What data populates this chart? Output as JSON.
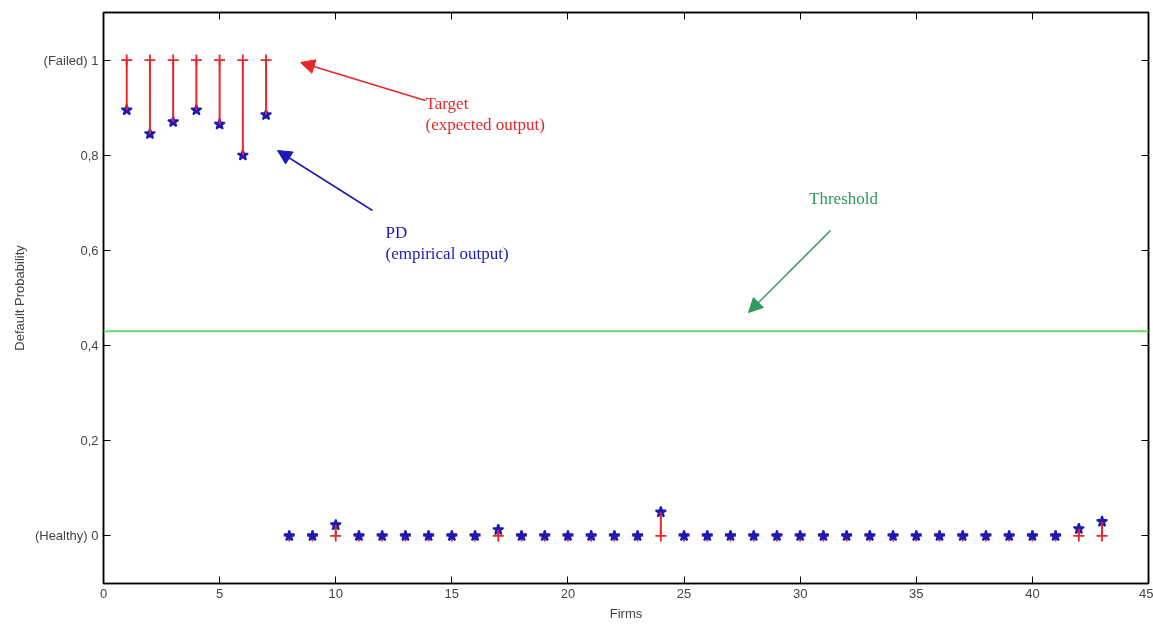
{
  "chart_data": {
    "type": "scatter",
    "xlabel": "Firms",
    "ylabel": "Default Probability",
    "x": [
      1,
      2,
      3,
      4,
      5,
      6,
      7,
      8,
      9,
      10,
      11,
      12,
      13,
      14,
      15,
      16,
      17,
      18,
      19,
      20,
      21,
      22,
      23,
      24,
      25,
      26,
      27,
      28,
      29,
      30,
      31,
      32,
      33,
      34,
      35,
      36,
      37,
      38,
      39,
      40,
      41,
      42,
      43
    ],
    "series": [
      {
        "color": "#e8272a",
        "values": [
          1,
          1,
          1,
          1,
          1,
          1,
          1,
          0,
          0,
          0,
          0,
          0,
          0,
          0,
          0,
          0,
          0,
          0,
          0,
          0,
          0,
          0,
          0,
          0,
          0,
          0,
          0,
          0,
          0,
          0,
          0,
          0,
          0,
          0,
          0,
          0,
          0,
          0,
          0,
          0,
          0,
          0,
          0
        ],
        "errors": [
          [
            0.895,
            1
          ],
          [
            0.845,
            1
          ],
          [
            0.87,
            1
          ],
          [
            0.895,
            1
          ],
          [
            0.865,
            1
          ],
          [
            0.8,
            1
          ],
          [
            0.885,
            1
          ],
          null,
          null,
          [
            0,
            0.023
          ],
          null,
          null,
          null,
          null,
          null,
          null,
          [
            0,
            0.013
          ],
          null,
          null,
          null,
          null,
          null,
          null,
          [
            0,
            0.05
          ],
          null,
          null,
          null,
          null,
          null,
          null,
          null,
          null,
          null,
          null,
          null,
          null,
          null,
          null,
          null,
          null,
          null,
          [
            0,
            0.015
          ],
          [
            0,
            0.03
          ]
        ]
      },
      {
        "color": "#1a1ab8",
        "marker": "star",
        "values": [
          0.895,
          0.845,
          0.87,
          0.895,
          0.865,
          0.8,
          0.885,
          0,
          0,
          0.023,
          0,
          0,
          0,
          0,
          0,
          0,
          0.013,
          0,
          0,
          0,
          0,
          0,
          0,
          0.05,
          0,
          0,
          0,
          0,
          0,
          0,
          0,
          0,
          0,
          0,
          0,
          0,
          0,
          0,
          0,
          0,
          0,
          0.015,
          0.03
        ]
      }
    ],
    "ref_lines": [
      {
        "axis": "y",
        "value": 0.43,
        "color": "#66dd66"
      }
    ],
    "annotations": [
      "Target\n(expected output)",
      "PD\n(empirical output)",
      "Threshold"
    ],
    "xlim": [
      0,
      45
    ],
    "xticks": [
      0,
      5,
      10,
      15,
      20,
      25,
      30,
      35,
      40,
      45
    ],
    "ylim": [
      -0.1,
      1.1
    ],
    "yticks": [
      {
        "value": 0,
        "label": "(Healthy) 0"
      },
      {
        "value": 0.2,
        "label": "0,2"
      },
      {
        "value": 0.4,
        "label": "0,4"
      },
      {
        "value": 0.6,
        "label": "0,6"
      },
      {
        "value": 0.8,
        "label": "0,8"
      },
      {
        "value": 1,
        "label": "(Failed) 1"
      }
    ],
    "marker": "cross"
  }
}
